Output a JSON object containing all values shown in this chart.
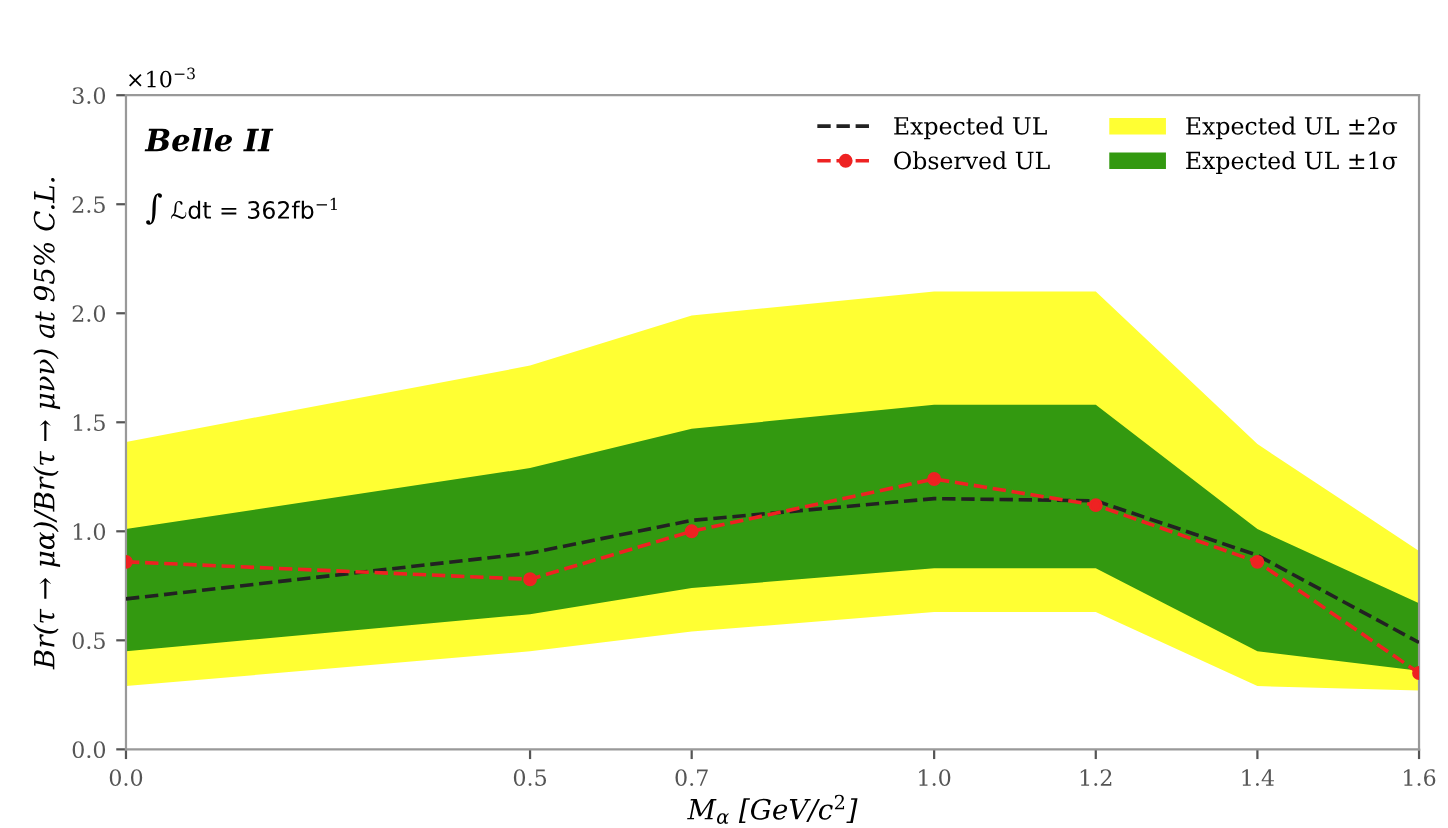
{
  "chart_data": {
    "type": "line",
    "xlabel": "M$_{α}$ [GeV/c$^{2}$]",
    "ylabel": "Br(τ → μα)/Br(τ → μνν) at 95% C.L.",
    "annotations": [
      "×10$^{−3}$",
      "Belle II",
      "∫ ℒdt = 362fb$^{−1}$"
    ],
    "x": [
      0.0,
      0.5,
      0.7,
      1.0,
      1.2,
      1.4,
      1.6
    ],
    "series": [
      {
        "name": "Expected UL ±2σ",
        "color": "#ffff33",
        "values": [
          null,
          null,
          null,
          null,
          null,
          null,
          null
        ],
        "lower": [
          0.29,
          0.45,
          0.54,
          0.63,
          0.63,
          0.29,
          0.27
        ],
        "upper": [
          1.41,
          1.76,
          1.99,
          2.1,
          2.1,
          1.4,
          0.91
        ]
      },
      {
        "name": "Expected UL ±1σ",
        "color": "#339910",
        "values": [
          null,
          null,
          null,
          null,
          null,
          null,
          null
        ],
        "lower": [
          0.45,
          0.62,
          0.74,
          0.83,
          0.83,
          0.45,
          0.36
        ],
        "upper": [
          1.01,
          1.29,
          1.47,
          1.58,
          1.58,
          1.01,
          0.67
        ]
      },
      {
        "name": "Expected UL",
        "color": "#222222",
        "line_style": "dashed",
        "marker": "none",
        "values": [
          0.69,
          0.9,
          1.05,
          1.15,
          1.14,
          0.89,
          0.49
        ]
      },
      {
        "name": "Observed UL",
        "color": "#ee2222",
        "line_style": "dashed",
        "marker": "circle",
        "values": [
          0.86,
          0.78,
          1.0,
          1.24,
          1.12,
          0.86,
          0.35
        ]
      }
    ],
    "xlim": [
      0.0,
      1.6
    ],
    "xticks": [
      {
        "value": 0,
        "label": "0.0"
      },
      0.5,
      0.7,
      {
        "value": 1,
        "label": "1.0"
      },
      1.2,
      1.4,
      1.6
    ],
    "ylim": [
      0.0,
      3.0
    ],
    "yticks": [
      {
        "value": 0,
        "label": "0.0"
      },
      0.5,
      {
        "value": 1,
        "label": "1.0"
      },
      1.5,
      {
        "value": 2,
        "label": "2.0"
      },
      2.5,
      {
        "value": 3,
        "label": "3.0"
      }
    ],
    "grid": false,
    "legend": "top right"
  }
}
